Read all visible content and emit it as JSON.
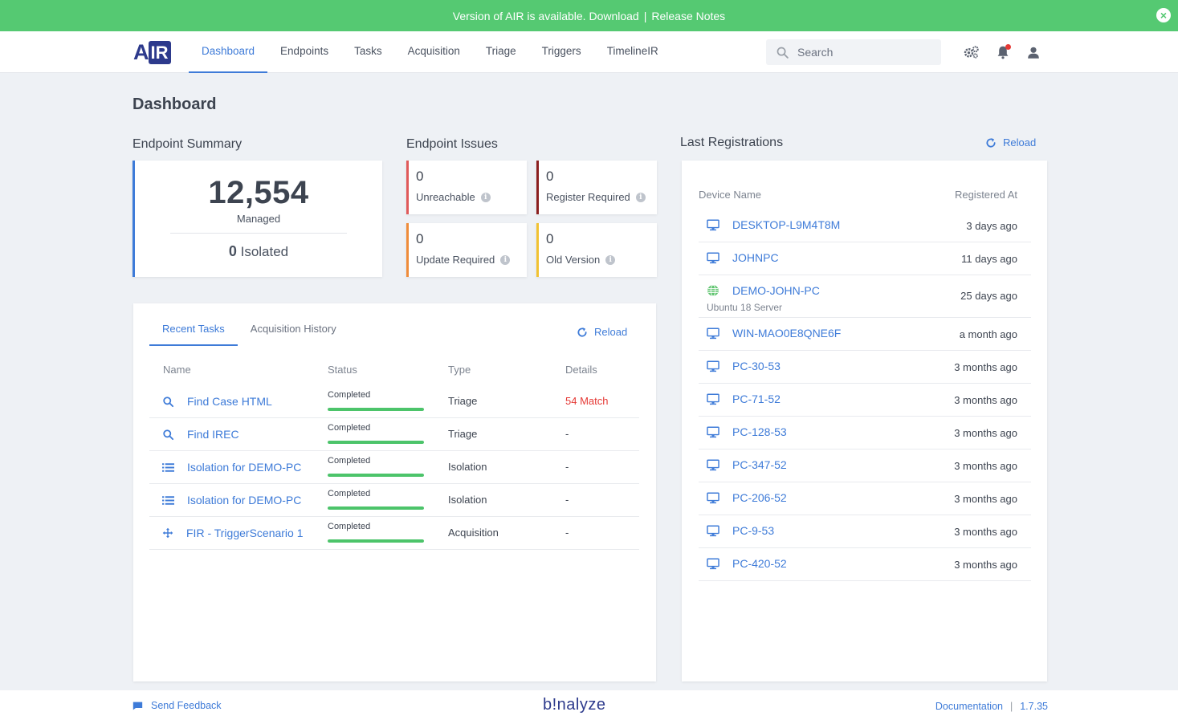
{
  "banner": {
    "text": "Version of AIR is available.",
    "download": "Download",
    "separator": "|",
    "release_notes": "Release Notes",
    "close": "×"
  },
  "logo": {
    "a": "A",
    "ir": "IR"
  },
  "nav": {
    "items": [
      "Dashboard",
      "Endpoints",
      "Tasks",
      "Acquisition",
      "Triage",
      "Triggers",
      "TimelineIR"
    ],
    "active": "Dashboard"
  },
  "search": {
    "placeholder": "Search",
    "value": ""
  },
  "page_title": "Dashboard",
  "endpoint_summary": {
    "title": "Endpoint Summary",
    "managed_count": "12,554",
    "managed_label": "Managed",
    "isolated_count": "0",
    "isolated_label": "Isolated"
  },
  "endpoint_issues": {
    "title": "Endpoint Issues",
    "items": [
      {
        "count": "0",
        "label": "Unreachable",
        "color": "#e05a5a"
      },
      {
        "count": "0",
        "label": "Register Required",
        "color": "#8b1f1f"
      },
      {
        "count": "0",
        "label": "Update Required",
        "color": "#ef8c3a"
      },
      {
        "count": "0",
        "label": "Old Version",
        "color": "#f1c232"
      }
    ]
  },
  "tasks_panel": {
    "tabs": [
      "Recent Tasks",
      "Acquisition History"
    ],
    "reload": "Reload",
    "headers": {
      "name": "Name",
      "status": "Status",
      "type": "Type",
      "details": "Details"
    },
    "rows": [
      {
        "icon": "search-icon",
        "name": "Find Case HTML",
        "status": "Completed",
        "progress": 1.0,
        "type": "Triage",
        "details": "54 Match"
      },
      {
        "icon": "search-icon",
        "name": "Find IREC",
        "status": "Completed",
        "progress": 1.0,
        "type": "Triage",
        "details": "-"
      },
      {
        "icon": "list-icon",
        "name": "Isolation for DEMO-PC",
        "status": "Completed",
        "progress": 1.0,
        "type": "Isolation",
        "details": "-"
      },
      {
        "icon": "list-icon",
        "name": "Isolation for DEMO-PC",
        "status": "Completed",
        "progress": 1.0,
        "type": "Isolation",
        "details": "-"
      },
      {
        "icon": "move-icon",
        "name": "FIR - TriggerScenario 1",
        "status": "Completed",
        "progress": 1.0,
        "type": "Acquisition",
        "details": "-"
      }
    ]
  },
  "registrations": {
    "title": "Last Registrations",
    "reload": "Reload",
    "headers": {
      "device": "Device Name",
      "registered": "Registered At"
    },
    "rows": [
      {
        "icon": "monitor-icon",
        "name": "DESKTOP-L9M4T8M",
        "when": "3 days ago"
      },
      {
        "icon": "monitor-icon",
        "name": "JOHNPC",
        "when": "11 days ago"
      },
      {
        "icon": "linux-icon",
        "name": "DEMO-JOHN-PC",
        "sub": "Ubuntu 18 Server",
        "when": "25 days ago"
      },
      {
        "icon": "monitor-icon",
        "name": "WIN-MAO0E8QNE6F",
        "when": "a month ago"
      },
      {
        "icon": "monitor-icon",
        "name": "PC-30-53",
        "when": "3 months ago"
      },
      {
        "icon": "monitor-icon",
        "name": "PC-71-52",
        "when": "3 months ago"
      },
      {
        "icon": "monitor-icon",
        "name": "PC-128-53",
        "when": "3 months ago"
      },
      {
        "icon": "monitor-icon",
        "name": "PC-347-52",
        "when": "3 months ago"
      },
      {
        "icon": "monitor-icon",
        "name": "PC-206-52",
        "when": "3 months ago"
      },
      {
        "icon": "monitor-icon",
        "name": "PC-9-53",
        "when": "3 months ago"
      },
      {
        "icon": "monitor-icon",
        "name": "PC-420-52",
        "when": "3 months ago"
      }
    ]
  },
  "footer": {
    "feedback": "Send Feedback",
    "brand": "b!nalyze",
    "documentation": "Documentation",
    "separator": "|",
    "version": "1.7.35"
  },
  "colors": {
    "accent": "#3e7bd8",
    "banner": "#55c972",
    "brand": "#2d3a8c",
    "success": "#4cc46a",
    "danger": "#e53935"
  }
}
